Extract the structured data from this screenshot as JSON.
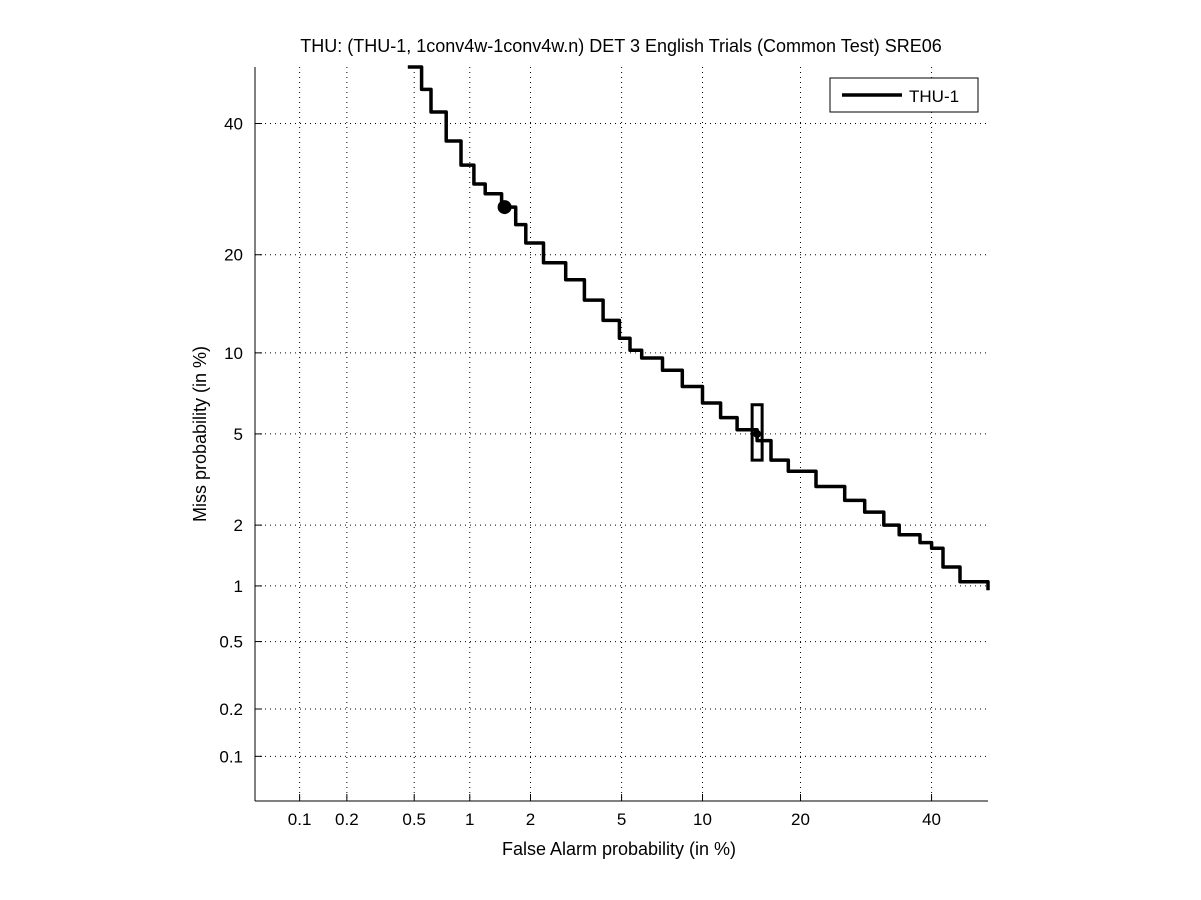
{
  "chart_data": {
    "type": "line",
    "title": "THU: (THU-1, 1conv4w-1conv4w.n) DET 3 English Trials (Common Test) SRE06",
    "xlabel": "False Alarm probability (in %)",
    "ylabel": "Miss probability (in %)",
    "x_scale": "normal-deviate (probit)",
    "y_scale": "normal-deviate (probit)",
    "xlim": [
      0.05,
      50
    ],
    "ylim": [
      0.05,
      50
    ],
    "x_ticks": [
      0.1,
      0.2,
      0.5,
      1,
      2,
      5,
      10,
      20,
      40
    ],
    "y_ticks": [
      0.1,
      0.2,
      0.5,
      1,
      2,
      5,
      10,
      20,
      40
    ],
    "x_tick_labels": [
      "0.1",
      "0.2",
      "0.5",
      "1",
      "2",
      "5",
      "10",
      "20",
      "40"
    ],
    "y_tick_labels": [
      "0.1",
      "0.2",
      "0.5",
      "1",
      "2",
      "5",
      "10",
      "20",
      "40"
    ],
    "grid": true,
    "legend_position": "top-right",
    "series": [
      {
        "name": "THU-1",
        "color": "#000000",
        "x": [
          0.46,
          0.55,
          0.62,
          0.75,
          0.9,
          1.05,
          1.2,
          1.45,
          1.7,
          1.9,
          2.3,
          2.9,
          3.5,
          4.2,
          4.9,
          5.4,
          6.0,
          7.2,
          8.5,
          10.0,
          11.5,
          13.0,
          15.0,
          16.5,
          18.5,
          22.0,
          26.0,
          29.0,
          32.0,
          34.5,
          36.0,
          38.0,
          40.0,
          42.0,
          45.0,
          50.0
        ],
        "y": [
          50.0,
          46.0,
          42.0,
          37.0,
          33.0,
          30.0,
          28.5,
          26.5,
          24.0,
          21.5,
          19.0,
          17.0,
          14.8,
          12.8,
          11.2,
          10.2,
          9.6,
          8.7,
          7.6,
          6.6,
          5.8,
          5.2,
          4.7,
          3.9,
          3.5,
          3.0,
          2.6,
          2.3,
          2.0,
          1.8,
          1.8,
          1.65,
          1.55,
          1.25,
          1.05,
          0.95
        ]
      }
    ],
    "markers": [
      {
        "label": "",
        "shape": "circle",
        "x": 1.5,
        "y": 26.5
      },
      {
        "label": "",
        "shape": "box",
        "x": 15.0,
        "y": 5.0,
        "y_low": 3.9,
        "y_high": 6.5
      }
    ]
  }
}
